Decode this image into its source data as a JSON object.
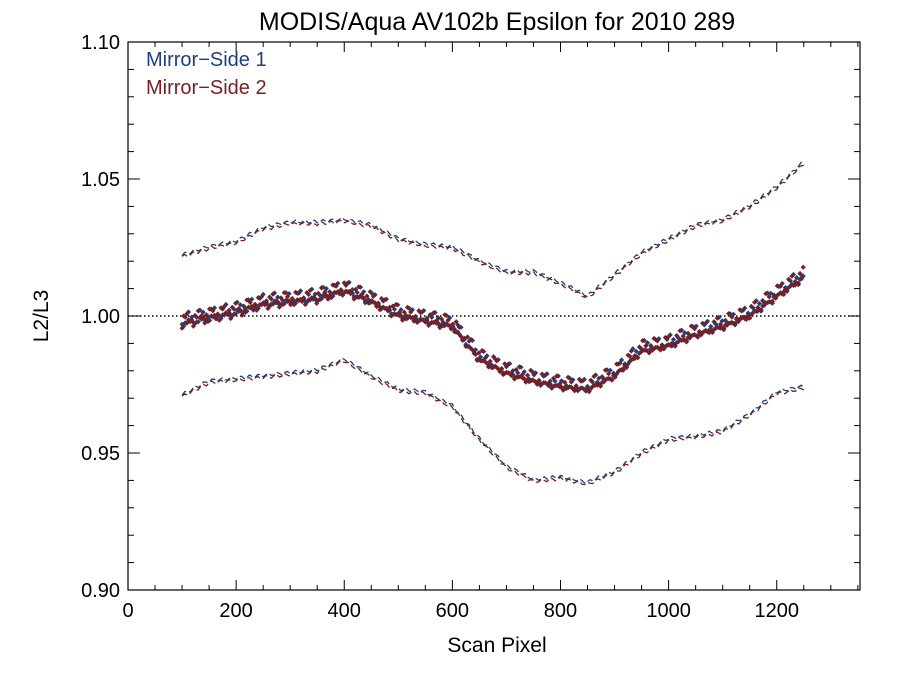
{
  "chart_data": {
    "type": "scatter",
    "title": "MODIS/Aqua AV102b Epsilon for 2010 289",
    "xlabel": "Scan Pixel",
    "ylabel": "L2/L3",
    "xlim": [
      0,
      1354
    ],
    "ylim": [
      0.9,
      1.1
    ],
    "x_ticks": [
      0,
      200,
      400,
      600,
      800,
      1000,
      1200
    ],
    "x_tick_labels": [
      "0",
      "200",
      "400",
      "600",
      "800",
      "1000",
      "1200"
    ],
    "y_ticks": [
      0.9,
      0.95,
      1.0,
      1.05,
      1.1
    ],
    "y_tick_labels": [
      "0.90",
      "0.95",
      "1.00",
      "1.05",
      "1.10"
    ],
    "reference_line": {
      "y": 1.0,
      "style": "dotted",
      "color": "#000000"
    },
    "legend_position": "top-left",
    "grid": false,
    "series": [
      {
        "name": "Mirror−Side 1",
        "color": "#1f3f7f",
        "marker": "diamond"
      },
      {
        "name": "Mirror−Side 2",
        "color": "#7a1f1f",
        "marker": "diamond"
      }
    ],
    "mean_profile": {
      "x": [
        100,
        150,
        200,
        250,
        300,
        350,
        400,
        450,
        500,
        550,
        600,
        650,
        700,
        750,
        800,
        850,
        900,
        950,
        1000,
        1050,
        1100,
        1150,
        1200,
        1250
      ],
      "y": [
        0.998,
        1.0,
        1.002,
        1.005,
        1.006,
        1.007,
        1.01,
        1.006,
        1.001,
        0.999,
        0.997,
        0.985,
        0.98,
        0.977,
        0.975,
        0.974,
        0.979,
        0.988,
        0.99,
        0.994,
        0.997,
        1.001,
        1.008,
        1.015
      ]
    },
    "upper_envelope": {
      "x": [
        100,
        150,
        200,
        250,
        300,
        350,
        400,
        450,
        500,
        550,
        600,
        650,
        700,
        750,
        800,
        850,
        900,
        950,
        1000,
        1050,
        1100,
        1150,
        1200,
        1250
      ],
      "y": [
        1.022,
        1.025,
        1.027,
        1.032,
        1.034,
        1.034,
        1.035,
        1.033,
        1.028,
        1.026,
        1.025,
        1.02,
        1.016,
        1.016,
        1.012,
        1.007,
        1.015,
        1.023,
        1.028,
        1.033,
        1.035,
        1.04,
        1.047,
        1.056
      ]
    },
    "lower_envelope": {
      "x": [
        100,
        150,
        200,
        250,
        300,
        350,
        400,
        450,
        500,
        550,
        600,
        650,
        700,
        750,
        800,
        850,
        900,
        950,
        1000,
        1050,
        1100,
        1150,
        1200,
        1250
      ],
      "y": [
        0.971,
        0.976,
        0.977,
        0.978,
        0.979,
        0.98,
        0.984,
        0.978,
        0.973,
        0.972,
        0.967,
        0.955,
        0.945,
        0.94,
        0.941,
        0.939,
        0.943,
        0.95,
        0.955,
        0.956,
        0.958,
        0.964,
        0.972,
        0.974
      ]
    }
  }
}
